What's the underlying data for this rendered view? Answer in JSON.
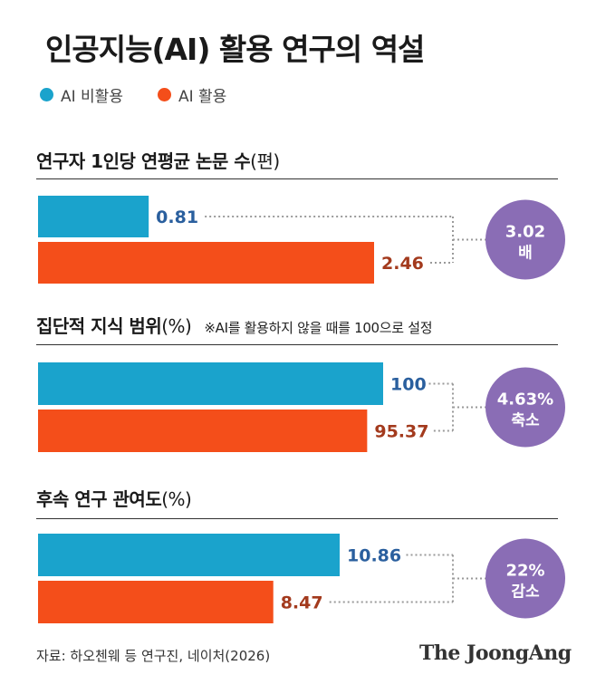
{
  "title": "인공지능(AI) 활용 연구의 역설",
  "legend": [
    {
      "label": "AI 비활용",
      "color": "#1aa3cc"
    },
    {
      "label": "AI 활용",
      "color": "#f44e1a"
    }
  ],
  "colors": {
    "non_ai_bar": "#1aa3cc",
    "ai_bar": "#f44e1a",
    "non_ai_label": "#2a5f9e",
    "ai_label": "#a33a1d",
    "badge": "#8a6db5",
    "connector": "#9a9a9a"
  },
  "chart_data": [
    {
      "type": "bar",
      "orientation": "horizontal",
      "title": "연구자 1인당 연평균 논문 수",
      "unit": "(편)",
      "note": "",
      "series": [
        {
          "name": "AI 비활용",
          "value": 0.81,
          "label": "0.81"
        },
        {
          "name": "AI 활용",
          "value": 2.46,
          "label": "2.46"
        }
      ],
      "badge": [
        "3.02",
        "배"
      ]
    },
    {
      "type": "bar",
      "orientation": "horizontal",
      "title": "집단적 지식 범위",
      "unit": "(%)",
      "note": "※AI를 활용하지 않을 때를 100으로 설정",
      "series": [
        {
          "name": "AI 비활용",
          "value": 100,
          "label": "100"
        },
        {
          "name": "AI 활용",
          "value": 95.37,
          "label": "95.37"
        }
      ],
      "badge": [
        "4.63%",
        "축소"
      ]
    },
    {
      "type": "bar",
      "orientation": "horizontal",
      "title": "후속 연구 관여도",
      "unit": "(%)",
      "note": "",
      "series": [
        {
          "name": "AI 비활용",
          "value": 10.86,
          "label": "10.86"
        },
        {
          "name": "AI 활용",
          "value": 8.47,
          "label": "8.47"
        }
      ],
      "badge": [
        "22%",
        "감소"
      ]
    }
  ],
  "footer": {
    "source": "자료: 하오첸웨 등 연구진, 네이처(2026)",
    "brand": "The JoongAng"
  }
}
